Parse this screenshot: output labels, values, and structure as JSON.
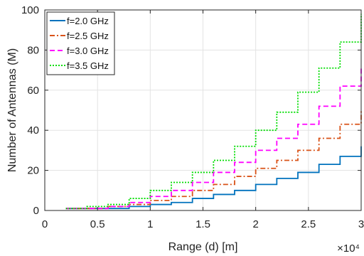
{
  "chart_data": {
    "type": "line",
    "title": "",
    "xlabel": "Range (d) [m]",
    "ylabel": "Number of Antennas (M)",
    "xlim": [
      0,
      30000
    ],
    "ylim": [
      0,
      100
    ],
    "x_ticks": [
      0,
      5000,
      10000,
      15000,
      20000,
      25000,
      30000
    ],
    "x_tick_labels": [
      "0",
      "0.5",
      "1",
      "1.5",
      "2",
      "2.5",
      "3"
    ],
    "x_multiplier_label": "×10⁴",
    "y_ticks": [
      0,
      20,
      40,
      60,
      80,
      100
    ],
    "y_tick_labels": [
      "0",
      "20",
      "40",
      "60",
      "80",
      "100"
    ],
    "grid": true,
    "legend_position": "top-left",
    "x": [
      2000,
      4000,
      6000,
      8000,
      10000,
      12000,
      14000,
      16000,
      18000,
      20000,
      22000,
      24000,
      26000,
      28000,
      30000
    ],
    "series": [
      {
        "name": "f=2.0 GHz",
        "color": "#0072BD",
        "dash": "solid",
        "values": [
          1,
          1,
          1,
          2,
          3,
          4,
          6,
          8,
          10,
          13,
          16,
          19,
          23,
          27,
          32
        ]
      },
      {
        "name": "f=2.5 GHz",
        "color": "#D95319",
        "dash": "dashdot",
        "values": [
          1,
          1,
          2,
          3,
          5,
          7,
          10,
          13,
          17,
          21,
          25,
          30,
          36,
          43,
          50
        ]
      },
      {
        "name": "f=3.0 GHz",
        "color": "#FF00FF",
        "dash": "dashed",
        "values": [
          1,
          1,
          2,
          4,
          7,
          10,
          14,
          19,
          24,
          30,
          36,
          43,
          52,
          62,
          72
        ]
      },
      {
        "name": "f=3.5 GHz",
        "color": "#00DD00",
        "dash": "dotted",
        "values": [
          1,
          2,
          3,
          6,
          10,
          14,
          19,
          25,
          32,
          40,
          49,
          59,
          71,
          84,
          98
        ]
      }
    ]
  }
}
